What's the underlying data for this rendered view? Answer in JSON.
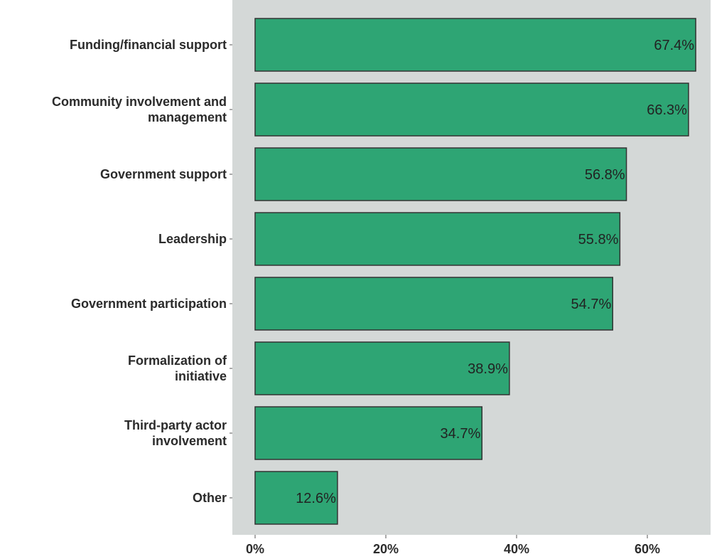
{
  "chart_data": {
    "type": "bar",
    "orientation": "horizontal",
    "categories": [
      [
        "Funding/financial support"
      ],
      [
        "Community involvement and",
        "management"
      ],
      [
        "Government support"
      ],
      [
        "Leadership"
      ],
      [
        "Government participation"
      ],
      [
        "Formalization of",
        "initiative"
      ],
      [
        "Third-party actor",
        "involvement"
      ],
      [
        "Other"
      ]
    ],
    "values": [
      67.4,
      66.3,
      56.8,
      55.8,
      54.7,
      38.9,
      34.7,
      12.6
    ],
    "value_labels": [
      "67.4%",
      "66.3%",
      "56.8%",
      "55.8%",
      "54.7%",
      "38.9%",
      "34.7%",
      "12.6%"
    ],
    "x_ticks": [
      0,
      20,
      40,
      60
    ],
    "x_tick_labels": [
      "0%",
      "20%",
      "40%",
      "60%"
    ],
    "xlim": [
      -3.6,
      69.3
    ],
    "grid": false,
    "title": "",
    "xlabel": "",
    "ylabel": "",
    "colors": {
      "bar_fill": "#2ea574",
      "bar_stroke": "#333333",
      "panel_background": "#d4d8d7",
      "text": "#2b2b2b"
    }
  }
}
